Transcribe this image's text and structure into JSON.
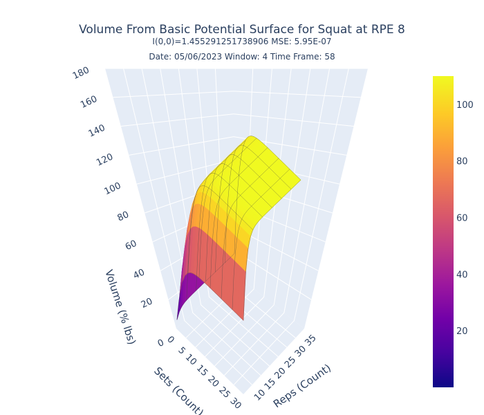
{
  "title": {
    "main": "Volume From Basic Potential Surface for Squat at RPE 8",
    "line1": "I(0,0)=1.455291251738906  MSE: 5.95E-07",
    "line2": "Date: 05/06/2023  Window: 4  Time Frame: 58"
  },
  "chart_data": {
    "type": "surface",
    "zlabel": "Volume (% lbs)",
    "xlabel": "Sets (Count)",
    "ylabel": "Reps (Count)",
    "x_ticks": [
      0,
      5,
      10,
      15,
      20,
      25,
      30
    ],
    "y_ticks": [
      10,
      15,
      20,
      25,
      30,
      35
    ],
    "z_ticks": [
      20,
      40,
      60,
      80,
      100,
      120,
      140,
      160,
      180
    ],
    "zlim": [
      0,
      180
    ],
    "surface": {
      "description_values": "Volume rises steeply from ~0 at low sets/reps and plateaus near ~110",
      "x": [
        1,
        5,
        10,
        15,
        20,
        25,
        30
      ],
      "y": [
        5,
        10,
        15,
        20,
        25,
        30,
        35
      ],
      "z_plateau": 110
    },
    "colorbar": {
      "ticks": [
        20,
        40,
        60,
        80,
        100
      ],
      "range": [
        0,
        110
      ],
      "colorscale": [
        "#0d0887",
        "#46039f",
        "#7201a8",
        "#9c179e",
        "#bd3786",
        "#d8576b",
        "#ed7953",
        "#fb9f3a",
        "#fdca26",
        "#f0f921"
      ]
    }
  }
}
